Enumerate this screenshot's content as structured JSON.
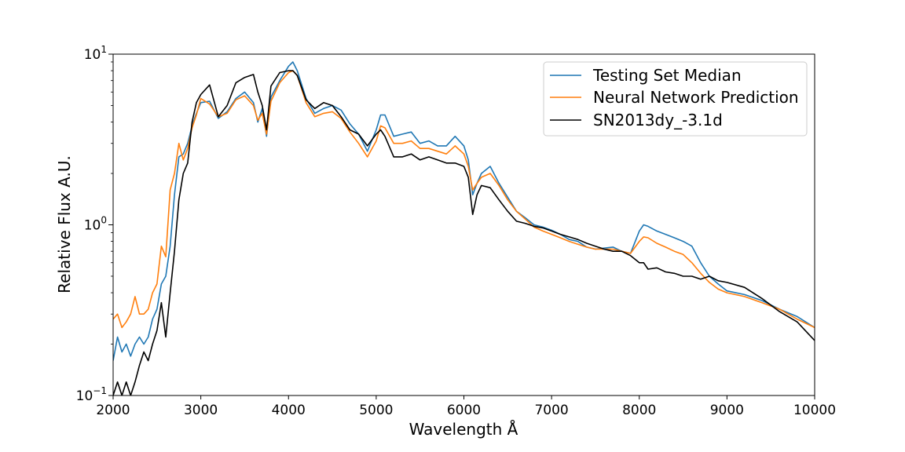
{
  "chart_data": {
    "type": "line",
    "xlabel": "Wavelength Å",
    "ylabel": "Relative Flux A.U.",
    "xlim": [
      2000,
      10000
    ],
    "ylim": [
      0.1,
      10
    ],
    "yscale": "log",
    "grid": false,
    "legend_position": "top-right",
    "x_ticks": [
      2000,
      3000,
      4000,
      5000,
      6000,
      7000,
      8000,
      9000,
      10000
    ],
    "x_tick_labels": [
      "2000",
      "3000",
      "4000",
      "5000",
      "6000",
      "7000",
      "8000",
      "9000",
      "10000"
    ],
    "y_ticks": [
      0.1,
      1,
      10
    ],
    "y_tick_labels": [
      {
        "base": "10",
        "exp": "−1"
      },
      {
        "base": "10",
        "exp": "0"
      },
      {
        "base": "10",
        "exp": "1"
      }
    ],
    "series": [
      {
        "name": "Testing Set Median",
        "color": "#1f77b4",
        "x": [
          2000,
          2050,
          2100,
          2150,
          2200,
          2250,
          2300,
          2350,
          2400,
          2450,
          2500,
          2550,
          2600,
          2650,
          2700,
          2750,
          2800,
          2850,
          2900,
          2950,
          3000,
          3100,
          3200,
          3300,
          3400,
          3500,
          3600,
          3650,
          3700,
          3750,
          3800,
          3900,
          4000,
          4050,
          4100,
          4200,
          4300,
          4400,
          4500,
          4600,
          4700,
          4800,
          4900,
          5000,
          5050,
          5100,
          5200,
          5300,
          5400,
          5500,
          5600,
          5700,
          5800,
          5900,
          6000,
          6050,
          6100,
          6150,
          6200,
          6300,
          6400,
          6500,
          6600,
          6700,
          6800,
          6900,
          7000,
          7100,
          7200,
          7300,
          7400,
          7500,
          7600,
          7700,
          7800,
          7900,
          8000,
          8050,
          8100,
          8200,
          8300,
          8400,
          8500,
          8600,
          8700,
          8800,
          8900,
          9000,
          9200,
          9400,
          9600,
          9800,
          10000
        ],
        "y": [
          0.16,
          0.22,
          0.18,
          0.2,
          0.17,
          0.2,
          0.22,
          0.2,
          0.22,
          0.28,
          0.32,
          0.45,
          0.5,
          0.75,
          1.5,
          2.5,
          2.6,
          3.0,
          3.8,
          4.5,
          5.2,
          5.3,
          4.2,
          4.6,
          5.5,
          6.0,
          5.2,
          4.0,
          4.8,
          3.3,
          5.6,
          7.0,
          8.5,
          9.0,
          8.0,
          5.5,
          4.5,
          4.8,
          5.0,
          4.7,
          3.9,
          3.4,
          2.7,
          3.6,
          4.4,
          4.4,
          3.3,
          3.4,
          3.5,
          3.0,
          3.1,
          2.9,
          2.9,
          3.3,
          2.9,
          2.4,
          1.5,
          1.75,
          2.0,
          2.2,
          1.75,
          1.45,
          1.2,
          1.1,
          1.0,
          0.97,
          0.93,
          0.88,
          0.82,
          0.8,
          0.74,
          0.72,
          0.73,
          0.74,
          0.7,
          0.68,
          0.92,
          1.0,
          0.98,
          0.92,
          0.88,
          0.84,
          0.8,
          0.75,
          0.6,
          0.5,
          0.45,
          0.41,
          0.39,
          0.36,
          0.32,
          0.29,
          0.25
        ]
      },
      {
        "name": "Neural Network Prediction",
        "color": "#ff7f0e",
        "x": [
          2000,
          2050,
          2100,
          2150,
          2200,
          2250,
          2300,
          2350,
          2400,
          2450,
          2500,
          2550,
          2600,
          2650,
          2700,
          2750,
          2800,
          2850,
          2900,
          2950,
          3000,
          3100,
          3200,
          3300,
          3400,
          3500,
          3600,
          3650,
          3700,
          3750,
          3800,
          3900,
          4000,
          4050,
          4100,
          4200,
          4300,
          4400,
          4500,
          4600,
          4700,
          4800,
          4900,
          5000,
          5050,
          5100,
          5200,
          5300,
          5400,
          5500,
          5600,
          5700,
          5800,
          5900,
          6000,
          6050,
          6100,
          6150,
          6200,
          6300,
          6400,
          6500,
          6600,
          6700,
          6800,
          6900,
          7000,
          7100,
          7200,
          7300,
          7400,
          7500,
          7600,
          7700,
          7800,
          7900,
          8000,
          8050,
          8100,
          8200,
          8300,
          8400,
          8500,
          8600,
          8700,
          8800,
          8900,
          9000,
          9200,
          9400,
          9600,
          9800,
          10000
        ],
        "y": [
          0.28,
          0.3,
          0.25,
          0.27,
          0.3,
          0.38,
          0.3,
          0.3,
          0.32,
          0.4,
          0.45,
          0.75,
          0.65,
          1.6,
          2.0,
          3.0,
          2.4,
          2.8,
          3.7,
          4.4,
          5.5,
          5.1,
          4.3,
          4.5,
          5.4,
          5.7,
          5.0,
          4.1,
          4.5,
          3.4,
          5.3,
          6.8,
          7.8,
          8.0,
          7.5,
          5.2,
          4.3,
          4.5,
          4.6,
          4.2,
          3.5,
          3.0,
          2.5,
          3.1,
          3.8,
          3.7,
          3.0,
          3.0,
          3.1,
          2.8,
          2.8,
          2.7,
          2.6,
          2.9,
          2.6,
          2.2,
          1.6,
          1.75,
          1.9,
          2.0,
          1.7,
          1.4,
          1.2,
          1.08,
          0.97,
          0.92,
          0.88,
          0.84,
          0.8,
          0.77,
          0.74,
          0.72,
          0.72,
          0.72,
          0.7,
          0.68,
          0.8,
          0.85,
          0.84,
          0.78,
          0.74,
          0.7,
          0.67,
          0.6,
          0.52,
          0.46,
          0.42,
          0.4,
          0.38,
          0.35,
          0.32,
          0.28,
          0.25
        ]
      },
      {
        "name": "SN2013dy_-3.1d",
        "color": "#000000",
        "x": [
          2000,
          2050,
          2100,
          2150,
          2200,
          2250,
          2300,
          2350,
          2400,
          2450,
          2500,
          2550,
          2600,
          2650,
          2700,
          2750,
          2800,
          2850,
          2900,
          2950,
          3000,
          3100,
          3200,
          3300,
          3400,
          3500,
          3600,
          3650,
          3700,
          3750,
          3800,
          3900,
          4000,
          4050,
          4100,
          4200,
          4300,
          4400,
          4500,
          4600,
          4700,
          4800,
          4900,
          5000,
          5050,
          5100,
          5200,
          5300,
          5400,
          5500,
          5600,
          5700,
          5800,
          5900,
          6000,
          6050,
          6100,
          6150,
          6200,
          6300,
          6400,
          6500,
          6600,
          6700,
          6800,
          6900,
          7000,
          7100,
          7200,
          7300,
          7400,
          7500,
          7600,
          7700,
          7800,
          7900,
          8000,
          8050,
          8100,
          8200,
          8300,
          8400,
          8500,
          8600,
          8700,
          8800,
          8900,
          9000,
          9200,
          9400,
          9600,
          9800,
          10000
        ],
        "y": [
          0.1,
          0.12,
          0.1,
          0.12,
          0.1,
          0.12,
          0.15,
          0.18,
          0.16,
          0.2,
          0.24,
          0.35,
          0.22,
          0.4,
          0.7,
          1.4,
          2.0,
          2.3,
          4.0,
          5.2,
          5.8,
          6.6,
          4.3,
          5.0,
          6.8,
          7.3,
          7.6,
          6.0,
          5.0,
          3.6,
          6.5,
          7.8,
          8.0,
          8.0,
          7.5,
          5.4,
          4.8,
          5.2,
          5.0,
          4.3,
          3.6,
          3.4,
          2.9,
          3.4,
          3.6,
          3.3,
          2.5,
          2.5,
          2.6,
          2.4,
          2.5,
          2.4,
          2.3,
          2.3,
          2.2,
          1.9,
          1.15,
          1.5,
          1.7,
          1.65,
          1.4,
          1.2,
          1.05,
          1.02,
          0.98,
          0.96,
          0.92,
          0.88,
          0.85,
          0.82,
          0.78,
          0.75,
          0.72,
          0.7,
          0.7,
          0.66,
          0.6,
          0.6,
          0.55,
          0.56,
          0.53,
          0.52,
          0.5,
          0.5,
          0.48,
          0.5,
          0.47,
          0.46,
          0.43,
          0.37,
          0.31,
          0.27,
          0.21
        ]
      }
    ]
  }
}
